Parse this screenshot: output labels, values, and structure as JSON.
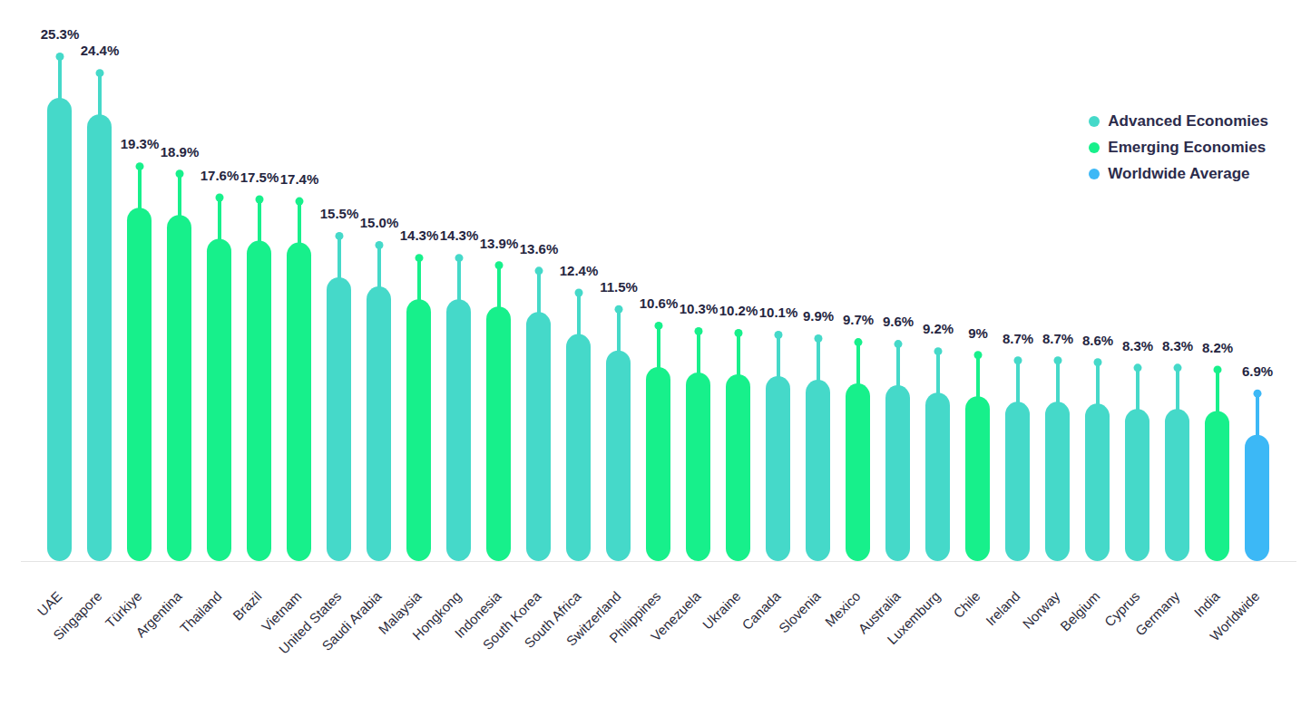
{
  "chart_data": {
    "type": "bar",
    "categories": [
      "UAE",
      "Singapore",
      "Türkiye",
      "Argentina",
      "Thailand",
      "Brazil",
      "Vietnam",
      "United States",
      "Saudi Arabia",
      "Malaysia",
      "Hongkong",
      "Indonesia",
      "South Korea",
      "South Africa",
      "Switzerland",
      "Philippines",
      "Venezuela",
      "Ukraine",
      "Canada",
      "Slovenia",
      "Mexico",
      "Australia",
      "Luxemburg",
      "Chile",
      "Ireland",
      "Norway",
      "Belgium",
      "Cyprus",
      "Germany",
      "India",
      "Worldwide"
    ],
    "series": [
      {
        "name": "Advanced Economies",
        "color": "#45d9c9",
        "values": [
          25.3,
          24.4,
          null,
          null,
          null,
          null,
          null,
          15.5,
          15.0,
          null,
          14.3,
          null,
          13.6,
          12.4,
          11.5,
          null,
          null,
          null,
          10.1,
          9.9,
          null,
          9.6,
          9.2,
          null,
          8.7,
          8.7,
          8.6,
          8.3,
          8.3,
          null,
          null
        ],
        "value_labels": [
          "25.3%",
          "24.4%",
          null,
          null,
          null,
          null,
          null,
          "15.5%",
          "15.0%",
          null,
          "14.3%",
          null,
          "13.6%",
          "12.4%",
          "11.5%",
          null,
          null,
          null,
          "10.1%",
          "9.9%",
          null,
          "9.6%",
          "9.2%",
          null,
          "8.7%",
          "8.7%",
          "8.6%",
          "8.3%",
          "8.3%",
          null,
          null
        ]
      },
      {
        "name": "Emerging Economies",
        "color": "#17f08b",
        "values": [
          null,
          null,
          19.3,
          18.9,
          17.6,
          17.5,
          17.4,
          null,
          null,
          14.3,
          null,
          13.9,
          null,
          null,
          null,
          10.6,
          10.3,
          10.2,
          null,
          null,
          9.7,
          null,
          null,
          9,
          null,
          null,
          null,
          null,
          null,
          8.2,
          null
        ],
        "value_labels": [
          null,
          null,
          "19.3%",
          "18.9%",
          "17.6%",
          "17.5%",
          "17.4%",
          null,
          null,
          "14.3%",
          null,
          "13.9%",
          null,
          null,
          null,
          "10.6%",
          "10.3%",
          "10.2%",
          null,
          null,
          "9.7%",
          null,
          null,
          "9%",
          null,
          null,
          null,
          null,
          null,
          "8.2%",
          null
        ]
      },
      {
        "name": "Worldwide Average",
        "color": "#3cb8f6",
        "values": [
          null,
          null,
          null,
          null,
          null,
          null,
          null,
          null,
          null,
          null,
          null,
          null,
          null,
          null,
          null,
          null,
          null,
          null,
          null,
          null,
          null,
          null,
          null,
          null,
          null,
          null,
          null,
          null,
          null,
          null,
          6.9
        ],
        "value_labels": [
          null,
          null,
          null,
          null,
          null,
          null,
          null,
          null,
          null,
          null,
          null,
          null,
          null,
          null,
          null,
          null,
          null,
          null,
          null,
          null,
          null,
          null,
          null,
          null,
          null,
          null,
          null,
          null,
          null,
          null,
          "6.9%"
        ]
      }
    ],
    "ylim": [
      0,
      25.3
    ],
    "yticks": [],
    "grid": false,
    "legend": "top-right",
    "data_labels": true,
    "tick_labels": "x"
  }
}
